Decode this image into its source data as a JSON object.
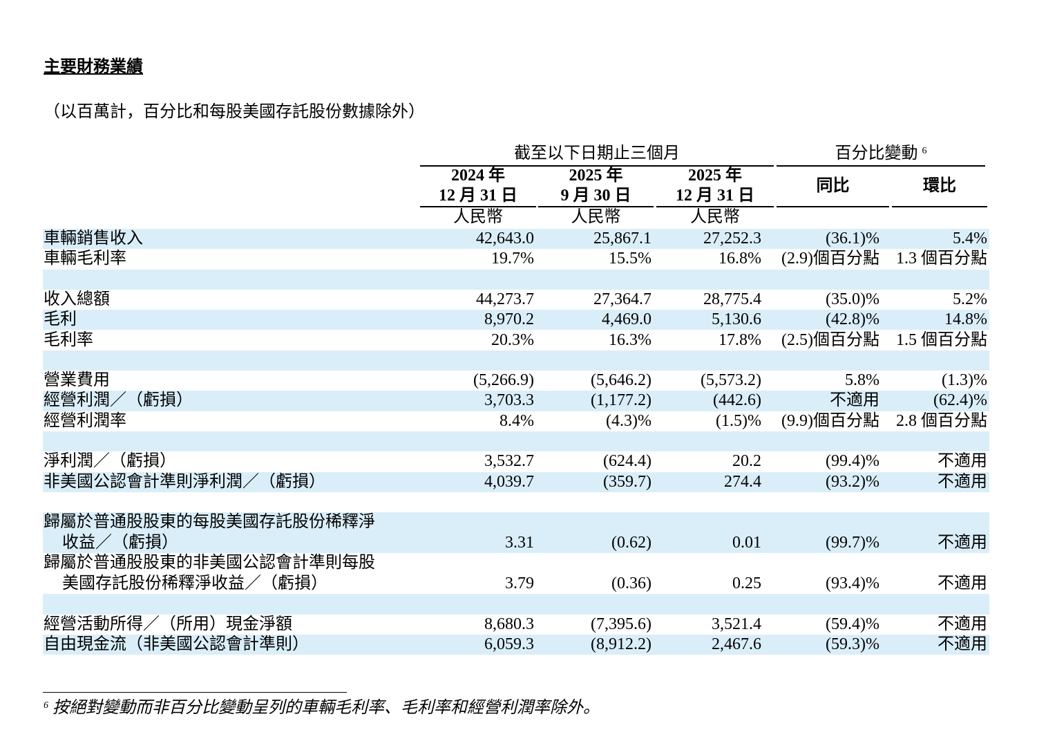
{
  "header": {
    "title": "主要財務業績",
    "subtitle": "（以百萬計，百分比和每股美國存託股份數據除外）"
  },
  "table": {
    "group_headers": [
      {
        "text": "截至以下日期止三個月"
      },
      {
        "text": "百分比變動",
        "note_ref": "6"
      }
    ],
    "columns": [
      {
        "year": "2024 年",
        "date": "12 月 31 日",
        "currency": "人民幣"
      },
      {
        "year": "2025 年",
        "date": "9 月 30 日",
        "currency": "人民幣"
      },
      {
        "year": "2025 年",
        "date": "12 月 31 日",
        "currency": "人民幣"
      }
    ],
    "change_columns": [
      "同比",
      "環比"
    ],
    "groups": [
      [
        {
          "label": [
            "車輛銷售收入"
          ],
          "values": [
            "42,643.0",
            "25,867.1",
            "27,252.3",
            "(36.1)%",
            "5.4%"
          ]
        },
        {
          "label": [
            "車輛毛利率"
          ],
          "values": [
            "19.7%",
            "15.5%",
            "16.8%",
            "(2.9)個百分點",
            "1.3 個百分點"
          ]
        }
      ],
      [
        {
          "label": [
            "收入總額"
          ],
          "values": [
            "44,273.7",
            "27,364.7",
            "28,775.4",
            "(35.0)%",
            "5.2%"
          ]
        },
        {
          "label": [
            "毛利"
          ],
          "values": [
            "8,970.2",
            "4,469.0",
            "5,130.6",
            "(42.8)%",
            "14.8%"
          ]
        },
        {
          "label": [
            "毛利率"
          ],
          "values": [
            "20.3%",
            "16.3%",
            "17.8%",
            "(2.5)個百分點",
            "1.5 個百分點"
          ]
        }
      ],
      [
        {
          "label": [
            "營業費用"
          ],
          "values": [
            "(5,266.9)",
            "(5,646.2)",
            "(5,573.2)",
            "5.8%",
            "(1.3)%"
          ]
        },
        {
          "label": [
            "經營利潤／（虧損）"
          ],
          "values": [
            "3,703.3",
            "(1,177.2)",
            "(442.6)",
            "不適用",
            "(62.4)%"
          ]
        },
        {
          "label": [
            "經營利潤率"
          ],
          "values": [
            "8.4%",
            "(4.3)%",
            "(1.5)%",
            "(9.9)個百分點",
            "2.8 個百分點"
          ]
        }
      ],
      [
        {
          "label": [
            "淨利潤／（虧損）"
          ],
          "values": [
            "3,532.7",
            "(624.4)",
            "20.2",
            "(99.4)%",
            "不適用"
          ]
        },
        {
          "label": [
            "非美國公認會計準則淨利潤／（虧損）"
          ],
          "values": [
            "4,039.7",
            "(359.7)",
            "274.4",
            "(93.2)%",
            "不適用"
          ]
        }
      ],
      [
        {
          "label": [
            "歸屬於普通股股東的每股美國存託股份稀釋淨",
            "收益／（虧損）"
          ],
          "values": [
            "3.31",
            "(0.62)",
            "0.01",
            "(99.7)%",
            "不適用"
          ]
        },
        {
          "label": [
            "歸屬於普通股股東的非美國公認會計準則每股",
            "美國存託股份稀釋淨收益／（虧損）"
          ],
          "values": [
            "3.79",
            "(0.36)",
            "0.25",
            "(93.4)%",
            "不適用"
          ]
        }
      ],
      [
        {
          "label": [
            "經營活動所得／（所用）現金淨額"
          ],
          "values": [
            "8,680.3",
            "(7,395.6)",
            "3,521.4",
            "(59.4)%",
            "不適用"
          ]
        },
        {
          "label": [
            "自由現金流（非美國公認會計準則）"
          ],
          "values": [
            "6,059.3",
            "(8,912.2)",
            "2,467.6",
            "(59.3)%",
            "不適用"
          ]
        }
      ]
    ]
  },
  "footnote": {
    "ref": "6",
    "text": "按絕對變動而非百分比變動呈列的車輛毛利率、毛利率和經營利潤率除外。"
  }
}
